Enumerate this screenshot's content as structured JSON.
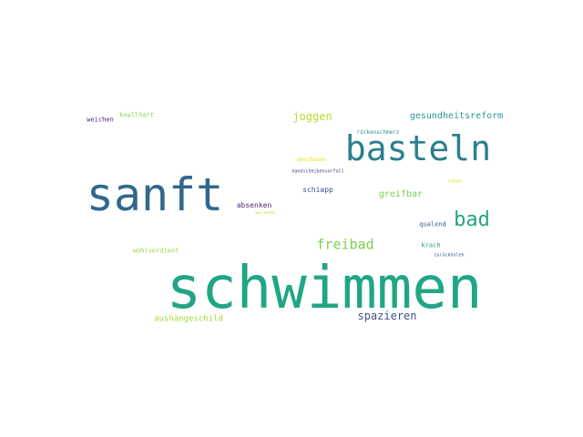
{
  "words": [
    {
      "text": "schwimmen",
      "color": "#21a685"
    },
    {
      "text": "sanft",
      "color": "#31688e"
    },
    {
      "text": "basteln",
      "color": "#2c7f8e"
    },
    {
      "text": "bad",
      "color": "#25a584"
    },
    {
      "text": "freibad",
      "color": "#7ad151"
    },
    {
      "text": "spazieren",
      "color": "#3b528b"
    },
    {
      "text": "joggen",
      "color": "#b5de2b"
    },
    {
      "text": "gesundheitsreform",
      "color": "#2a9d8f"
    },
    {
      "text": "greifbar",
      "color": "#75d054"
    },
    {
      "text": "aushängeschild",
      "color": "#a0da39"
    },
    {
      "text": "schiapp",
      "color": "#3e4a89"
    },
    {
      "text": "absenken",
      "color": "#482878"
    },
    {
      "text": "knallhart",
      "color": "#86d549"
    },
    {
      "text": "weichen",
      "color": "#482475"
    },
    {
      "text": "rückenschmerz",
      "color": "#2e8f8c"
    },
    {
      "text": "umschauen",
      "color": "#e5e419"
    },
    {
      "text": "bandscheibenvorfall",
      "color": "#414487"
    },
    {
      "text": "qualend",
      "color": "#38598c"
    },
    {
      "text": "krach",
      "color": "#1f9f88"
    },
    {
      "text": "zurückholen",
      "color": "#3a538b"
    },
    {
      "text": "wohlverdient",
      "color": "#95d840"
    },
    {
      "text": "auslaufen",
      "color": "#c2df23"
    },
    {
      "text": "ruhen",
      "color": "#d8e219"
    }
  ]
}
